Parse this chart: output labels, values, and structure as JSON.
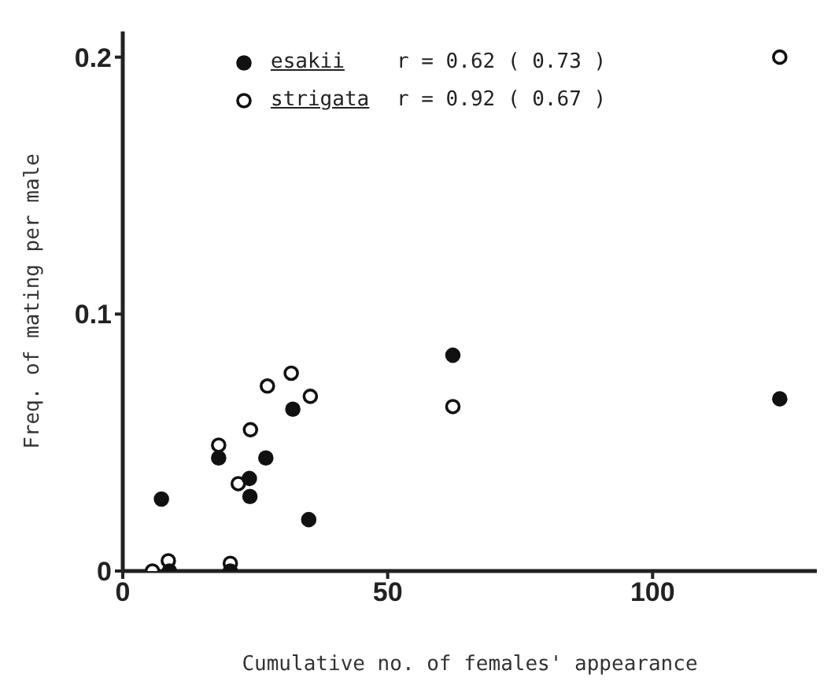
{
  "chart_data": {
    "type": "scatter",
    "xlabel": "Cumulative no. of females' appearance",
    "ylabel": "Freq. of mating per male",
    "xlim": [
      0,
      131
    ],
    "ylim": [
      0,
      0.21
    ],
    "xticks": [
      0,
      50,
      100
    ],
    "yticks": [
      0,
      0.1,
      0.2
    ],
    "grid": false,
    "legend": "top",
    "marker": "circle",
    "series": [
      {
        "name": "esakii",
        "color": "#111111",
        "x": [
          7.3,
          8.8,
          18.1,
          20.3,
          23.9,
          24.0,
          27.0,
          32.1,
          35.1,
          62.3,
          124
        ],
        "values": [
          0.028,
          0,
          0.044,
          0,
          0.036,
          0.029,
          0.044,
          0.063,
          0.02,
          0.084,
          0.067
        ]
      },
      {
        "name": "strigata",
        "color": "#111111",
        "x": [
          5.6,
          8.6,
          18.1,
          20.3,
          21.8,
          24.1,
          27.3,
          31.8,
          35.4,
          62.3,
          124
        ],
        "values": [
          0,
          0.004,
          0.049,
          0.003,
          0.034,
          0.055,
          0.072,
          0.077,
          0.068,
          0.064,
          0.2
        ]
      }
    ],
    "annotations": [
      "r = 0.62 ( 0.73 )",
      "r = 0.92 ( 0.67 )"
    ]
  }
}
